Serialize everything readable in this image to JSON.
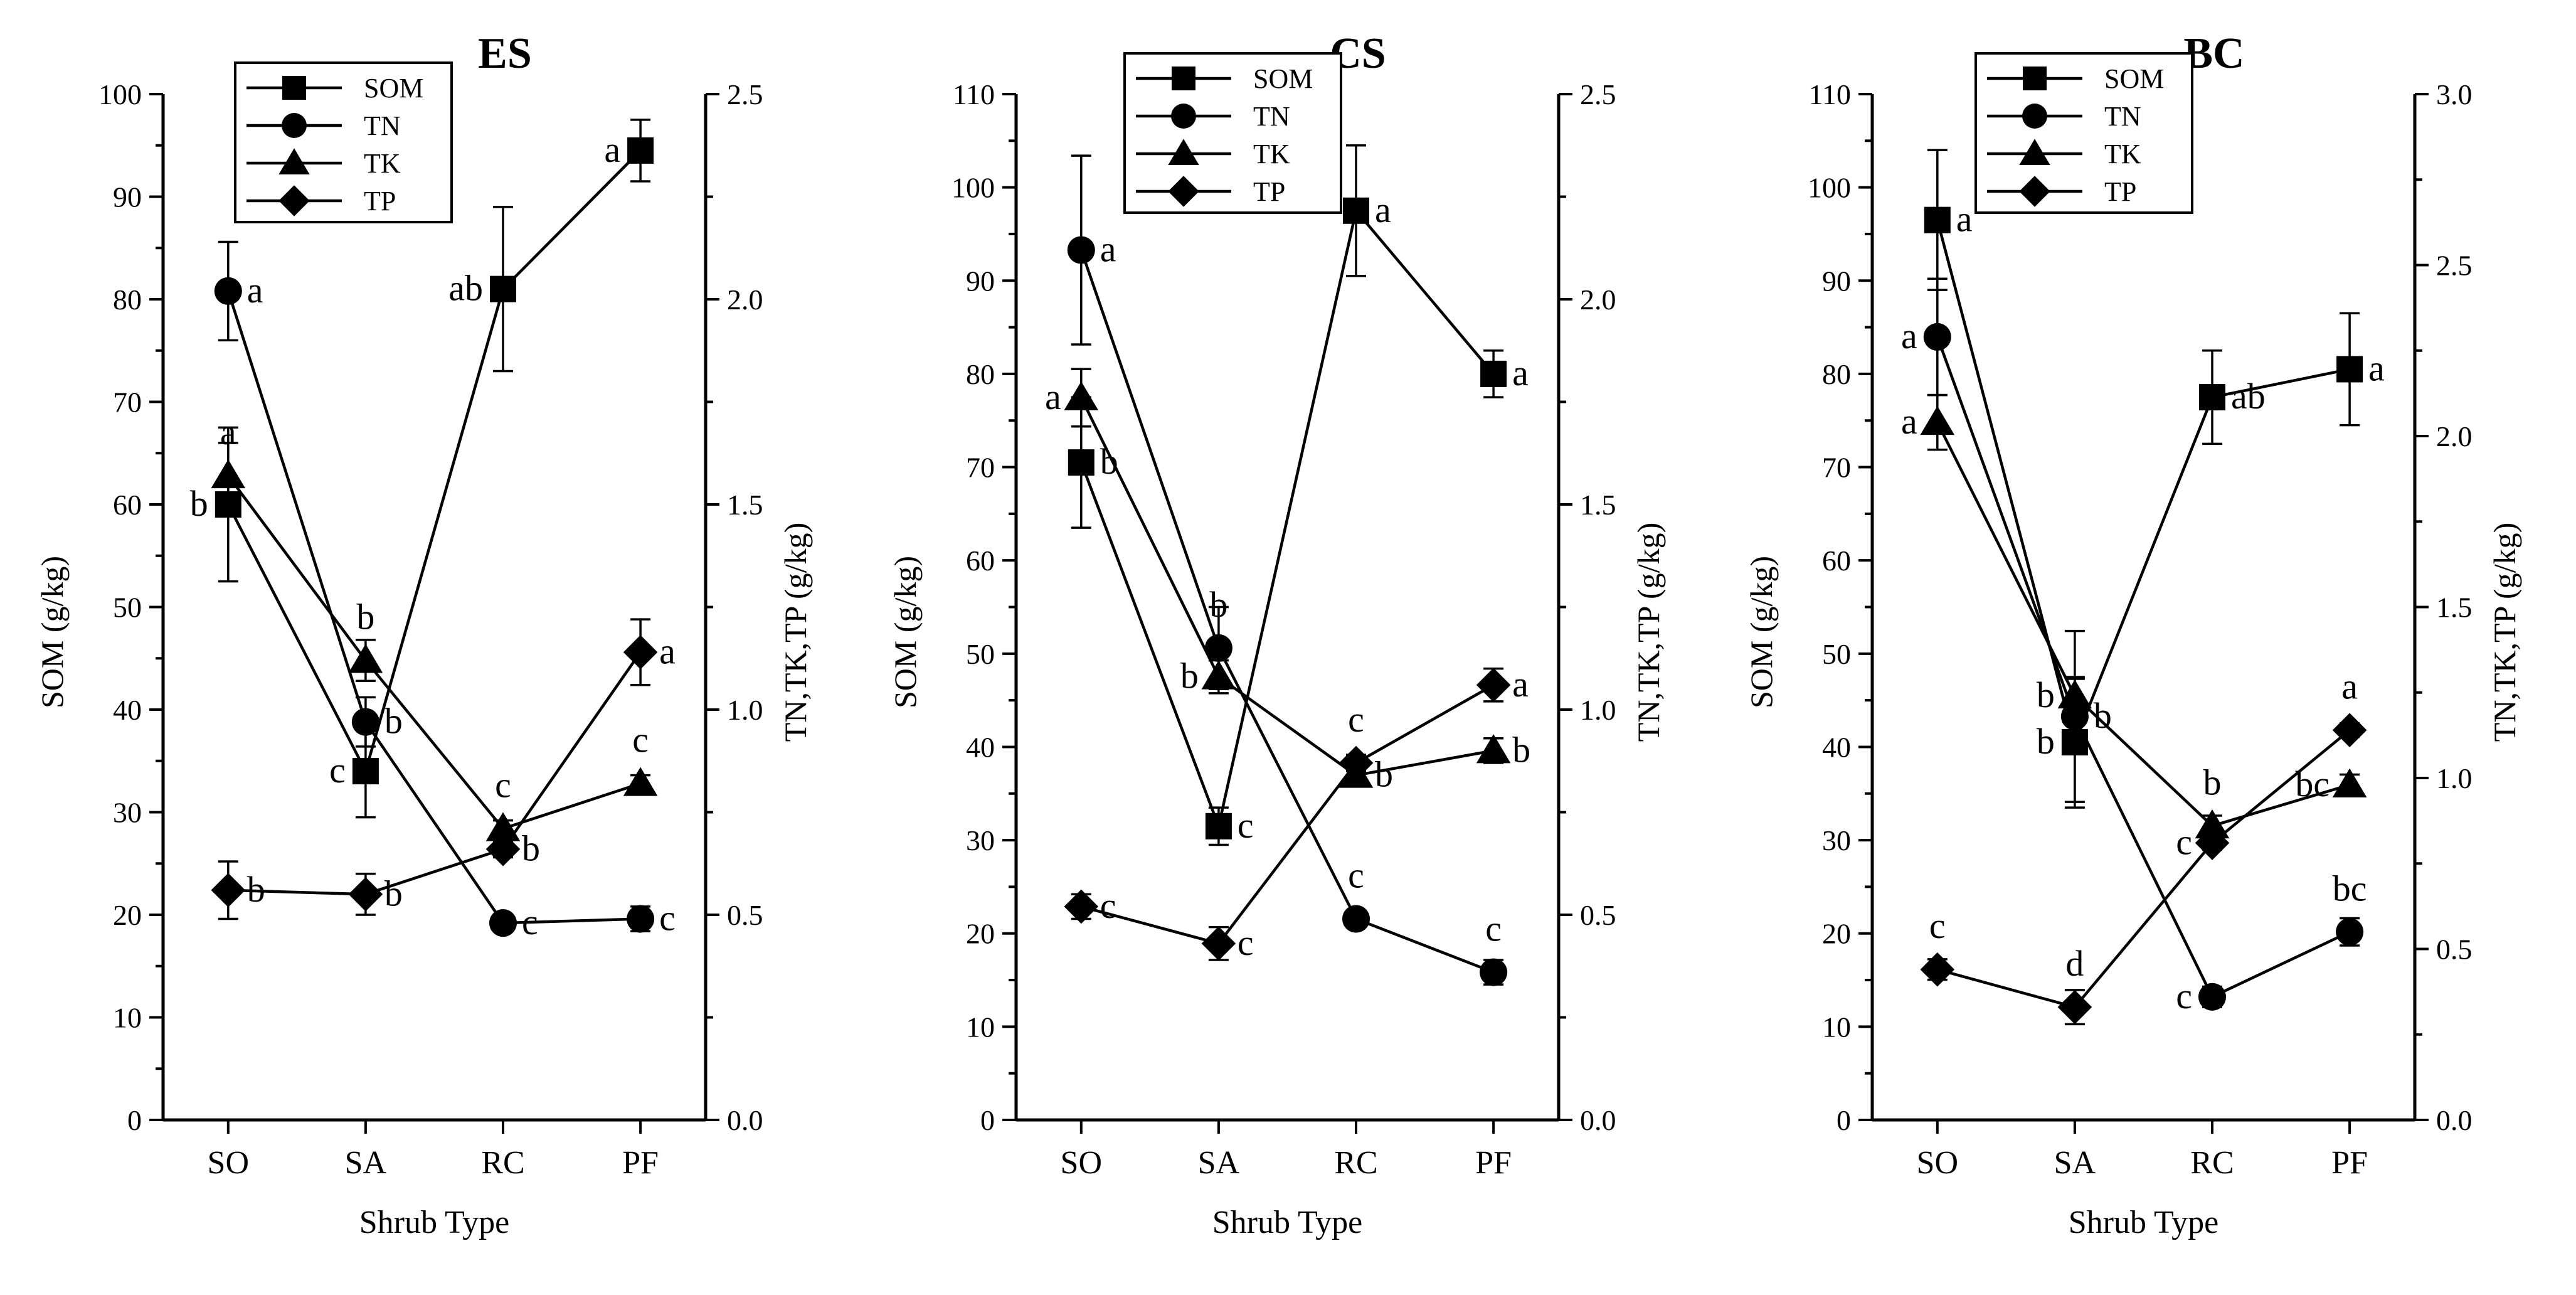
{
  "figure": {
    "xlabel": "Shrub Type",
    "left_ylabel": "SOM (g/kg)",
    "right_ylabel": "TN,TK,TP (g/kg)"
  },
  "chart_data": [
    {
      "type": "line",
      "title": "ES",
      "categories": [
        "SO",
        "SA",
        "RC",
        "PF"
      ],
      "xlabel": "Shrub Type",
      "ylabel": "SOM (g/kg)",
      "y2label": "TN,TK,TP (g/kg)",
      "ylim": [
        0,
        100
      ],
      "yticks": [
        0,
        10,
        20,
        30,
        40,
        50,
        60,
        70,
        80,
        90,
        100
      ],
      "y2lim": [
        0,
        2.5
      ],
      "y2ticks": [
        "0.0",
        "0.5",
        "1.0",
        "1.5",
        "2.0",
        "2.5"
      ],
      "legend": [
        "SOM",
        "TN",
        "TK",
        "TP"
      ],
      "series": [
        {
          "name": "SOM",
          "axis": "left",
          "marker": "square",
          "values": [
            60,
            34,
            81,
            94.5
          ],
          "errors": [
            7.5,
            4.5,
            8,
            3
          ],
          "labels": [
            "b",
            "c",
            "ab",
            "a"
          ],
          "label_pos": [
            "left",
            "left",
            "left",
            "left"
          ]
        },
        {
          "name": "TN",
          "axis": "right",
          "marker": "circle",
          "values": [
            2.02,
            0.97,
            0.48,
            0.49
          ],
          "errors": [
            0.12,
            0.06,
            0.02,
            0.03
          ],
          "labels": [
            "a",
            "b",
            "c",
            "c"
          ],
          "label_pos": [
            "right",
            "right",
            "right",
            "right"
          ]
        },
        {
          "name": "TK",
          "axis": "right",
          "marker": "triangle",
          "values": [
            1.57,
            1.12,
            0.71,
            0.82
          ],
          "errors": [
            0.08,
            0.05,
            0.02,
            0.02
          ],
          "labels": [
            "a",
            "b",
            "c",
            "c"
          ],
          "label_pos": [
            "above",
            "above",
            "above",
            "above"
          ]
        },
        {
          "name": "TP",
          "axis": "right",
          "marker": "diamond",
          "values": [
            0.56,
            0.55,
            0.66,
            1.14
          ],
          "errors": [
            0.07,
            0.05,
            0.02,
            0.08
          ],
          "labels": [
            "b",
            "b",
            "b",
            "a"
          ],
          "label_pos": [
            "right",
            "right",
            "right",
            "right"
          ]
        }
      ]
    },
    {
      "type": "line",
      "title": "CS",
      "categories": [
        "SO",
        "SA",
        "RC",
        "PF"
      ],
      "xlabel": "Shrub Type",
      "ylabel": "SOM (g/kg)",
      "y2label": "TN,TK,TP (g/kg)",
      "ylim": [
        0,
        110
      ],
      "yticks": [
        0,
        10,
        20,
        30,
        40,
        50,
        60,
        70,
        80,
        90,
        100,
        110
      ],
      "y2lim": [
        0,
        2.5
      ],
      "y2ticks": [
        "0.0",
        "0.5",
        "1.0",
        "1.5",
        "2.0",
        "2.5"
      ],
      "legend": [
        "SOM",
        "TN",
        "TK",
        "TP"
      ],
      "series": [
        {
          "name": "SOM",
          "axis": "left",
          "marker": "square",
          "values": [
            70.5,
            31.5,
            97.5,
            80
          ],
          "errors": [
            7,
            2,
            7,
            2.5
          ],
          "labels": [
            "b",
            "c",
            "a",
            "a"
          ],
          "label_pos": [
            "right",
            "right",
            "right",
            "right"
          ]
        },
        {
          "name": "TN",
          "axis": "right",
          "marker": "circle",
          "values": [
            2.12,
            1.15,
            0.49,
            0.36
          ],
          "errors": [
            0.23,
            0.1,
            0.01,
            0.03
          ],
          "labels": [
            "a",
            "b",
            "c",
            "c"
          ],
          "label_pos": [
            "right",
            "above",
            "above",
            "above"
          ]
        },
        {
          "name": "TK",
          "axis": "right",
          "marker": "triangle",
          "values": [
            1.76,
            1.08,
            0.84,
            0.9
          ],
          "errors": [
            0.07,
            0.04,
            0.02,
            0.03
          ],
          "labels": [
            "a",
            "b",
            "b",
            "b"
          ],
          "label_pos": [
            "left",
            "left",
            "right",
            "right"
          ]
        },
        {
          "name": "TP",
          "axis": "right",
          "marker": "diamond",
          "values": [
            0.52,
            0.43,
            0.87,
            1.06
          ],
          "errors": [
            0.03,
            0.04,
            0.02,
            0.04
          ],
          "labels": [
            "c",
            "c",
            "c",
            "a"
          ],
          "label_pos": [
            "right",
            "right",
            "above",
            "right"
          ]
        }
      ]
    },
    {
      "type": "line",
      "title": "BC",
      "categories": [
        "SO",
        "SA",
        "RC",
        "PF"
      ],
      "xlabel": "Shrub Type",
      "ylabel": "SOM (g/kg)",
      "y2label": "TN,TK,TP (g/kg)",
      "ylim": [
        0,
        110
      ],
      "yticks": [
        0,
        10,
        20,
        30,
        40,
        50,
        60,
        70,
        80,
        90,
        100,
        110
      ],
      "y2lim": [
        0,
        3.0
      ],
      "y2ticks": [
        "0.0",
        "0.5",
        "1.0",
        "1.5",
        "2.0",
        "2.5",
        "3.0"
      ],
      "legend": [
        "SOM",
        "TN",
        "TK",
        "TP"
      ],
      "series": [
        {
          "name": "SOM",
          "axis": "left",
          "marker": "square",
          "values": [
            96.5,
            40.5,
            77.5,
            80.5
          ],
          "errors": [
            7.5,
            7,
            5,
            6
          ],
          "labels": [
            "a",
            "b",
            "ab",
            "a"
          ],
          "label_pos": [
            "right",
            "left",
            "right",
            "right"
          ]
        },
        {
          "name": "TN",
          "axis": "right",
          "marker": "circle",
          "values": [
            2.29,
            1.18,
            0.36,
            0.55
          ],
          "errors": [
            0.17,
            0.25,
            0.03,
            0.04
          ],
          "labels": [
            "a",
            "b",
            "c",
            "bc"
          ],
          "label_pos": [
            "left",
            "right",
            "left",
            "above"
          ]
        },
        {
          "name": "TK",
          "axis": "right",
          "marker": "triangle",
          "values": [
            2.04,
            1.24,
            0.86,
            0.98
          ],
          "errors": [
            0.08,
            0.05,
            0.03,
            0.03
          ],
          "labels": [
            "a",
            "b",
            "b",
            "bc"
          ],
          "label_pos": [
            "left",
            "left",
            "above",
            "left"
          ]
        },
        {
          "name": "TP",
          "axis": "right",
          "marker": "diamond",
          "values": [
            0.44,
            0.33,
            0.81,
            1.14
          ],
          "errors": [
            0.03,
            0.05,
            0.02,
            0.02
          ],
          "labels": [
            "c",
            "d",
            "c",
            "a"
          ],
          "label_pos": [
            "above",
            "above",
            "left",
            "above"
          ]
        }
      ]
    }
  ]
}
